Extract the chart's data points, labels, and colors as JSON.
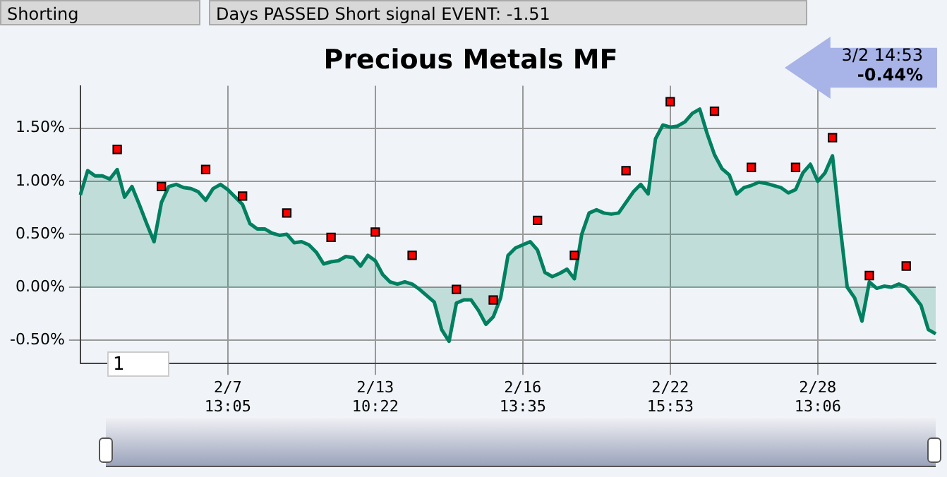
{
  "chart_data": {
    "type": "area",
    "title": "Precious Metals MF",
    "annotations": [
      "Shorting",
      "Days PASSED Short signal EVENT: -1.51",
      "3/2 14:53",
      "-0.44%",
      "1"
    ],
    "categories": [
      null,
      null,
      null,
      null,
      null,
      null,
      null,
      null,
      null,
      null,
      null,
      null,
      null,
      null,
      null,
      null,
      null,
      null,
      null,
      null,
      "2/7 13:05",
      null,
      null,
      null,
      null,
      null,
      null,
      null,
      null,
      null,
      null,
      null,
      null,
      null,
      null,
      null,
      null,
      null,
      null,
      null,
      "2/13 10:22",
      null,
      null,
      null,
      null,
      null,
      null,
      null,
      null,
      null,
      null,
      null,
      null,
      null,
      null,
      null,
      null,
      null,
      null,
      null,
      "2/16 13:35",
      null,
      null,
      null,
      null,
      null,
      null,
      null,
      null,
      null,
      null,
      null,
      null,
      null,
      null,
      null,
      null,
      null,
      null,
      null,
      "2/22 15:53",
      null,
      null,
      null,
      null,
      null,
      null,
      null,
      null,
      null,
      null,
      null,
      null,
      null,
      null,
      null,
      null,
      null,
      null,
      null,
      "2/28 13:06",
      null,
      null,
      null,
      null,
      null,
      null,
      null,
      null,
      null,
      null,
      null,
      null,
      null,
      null,
      null,
      null
    ],
    "series": [
      {
        "color": "#008060",
        "values": [
          0.87,
          1.1,
          1.05,
          1.05,
          1.02,
          1.11,
          0.85,
          0.95,
          0.78,
          0.6,
          0.43,
          0.8,
          0.95,
          0.97,
          0.94,
          0.93,
          0.9,
          0.82,
          0.93,
          0.97,
          0.92,
          0.85,
          0.78,
          0.6,
          0.55,
          0.55,
          0.51,
          0.49,
          0.5,
          0.42,
          0.43,
          0.4,
          0.33,
          0.22,
          0.24,
          0.25,
          0.29,
          0.28,
          0.2,
          0.3,
          0.25,
          0.12,
          0.05,
          0.03,
          0.05,
          0.03,
          -0.02,
          -0.08,
          -0.14,
          -0.4,
          -0.51,
          -0.15,
          -0.12,
          -0.12,
          -0.22,
          -0.35,
          -0.28,
          -0.1,
          0.3,
          0.37,
          0.4,
          0.43,
          0.35,
          0.14,
          0.1,
          0.13,
          0.17,
          0.08,
          0.5,
          0.7,
          0.73,
          0.7,
          0.69,
          0.7,
          0.8,
          0.9,
          0.97,
          0.88,
          1.4,
          1.53,
          1.51,
          1.52,
          1.56,
          1.64,
          1.68,
          1.45,
          1.25,
          1.12,
          1.06,
          0.88,
          0.94,
          0.96,
          0.99,
          0.98,
          0.96,
          0.94,
          0.89,
          0.92,
          1.08,
          1.16,
          1.0,
          1.08,
          1.24,
          0.6,
          0.0,
          -0.1,
          -0.32,
          0.05,
          -0.01,
          0.01,
          0.0,
          0.03,
          0.0,
          -0.08,
          -0.17,
          -0.4,
          -0.44
        ]
      },
      {
        "type": "scatter",
        "color": "#ff0000",
        "marker": "square",
        "values": [
          null,
          null,
          null,
          null,
          null,
          1.3,
          null,
          null,
          null,
          null,
          null,
          0.95,
          null,
          null,
          null,
          null,
          null,
          1.11,
          null,
          null,
          null,
          null,
          0.86,
          null,
          null,
          null,
          null,
          null,
          0.7,
          null,
          null,
          null,
          null,
          null,
          0.47,
          null,
          null,
          null,
          null,
          null,
          0.52,
          null,
          null,
          null,
          null,
          0.3,
          null,
          null,
          null,
          null,
          null,
          -0.02,
          null,
          null,
          null,
          null,
          -0.12,
          null,
          null,
          null,
          null,
          null,
          0.63,
          null,
          null,
          null,
          null,
          0.3,
          null,
          null,
          null,
          null,
          null,
          null,
          1.1,
          null,
          null,
          null,
          null,
          null,
          1.75,
          null,
          null,
          null,
          null,
          null,
          1.66,
          null,
          null,
          null,
          null,
          1.13,
          null,
          null,
          null,
          null,
          null,
          1.13,
          null,
          null,
          null,
          null,
          1.41,
          null,
          null,
          null,
          null,
          0.11,
          null,
          null,
          null,
          null,
          0.2,
          null,
          null,
          null,
          null
        ]
      }
    ],
    "ylim": [
      -0.72,
      1.9
    ],
    "yticks": [
      {
        "value": -0.5,
        "label": "-0.50%"
      },
      {
        "value": 0,
        "label": "0.00%"
      },
      {
        "value": 0.5,
        "label": "0.50%"
      },
      {
        "value": 1,
        "label": "1.00%"
      },
      {
        "value": 1.5,
        "label": "1.50%"
      }
    ],
    "grid": true,
    "legend": false
  }
}
